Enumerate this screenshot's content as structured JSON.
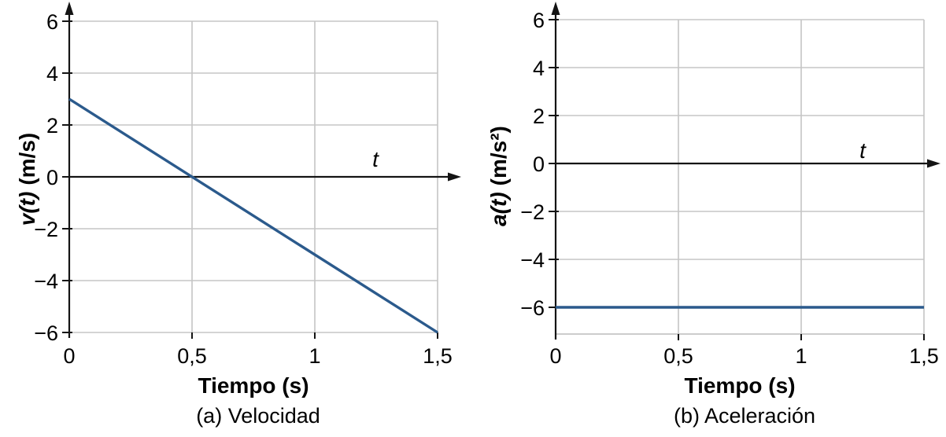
{
  "style": {
    "background": "#ffffff",
    "line_color": "#2b5a8c",
    "grid_color": "#c5c5c5",
    "axis_color": "#141414",
    "text_color": "#000000"
  },
  "chart_data": [
    {
      "id": "velocidad",
      "type": "line",
      "caption": "(a) Velocidad",
      "xlabel": "Tiempo (s)",
      "ylabel_variable": "v(t)",
      "ylabel_units": "(m/s)",
      "x_axis_symbol": "t",
      "xlim": [
        0,
        1.5
      ],
      "ylim": [
        -6,
        6
      ],
      "grid": true,
      "legend": false,
      "bottom_border": false,
      "x_ticks": [
        {
          "value": 0,
          "label": "0"
        },
        {
          "value": 0.5,
          "label": "0,5"
        },
        {
          "value": 1,
          "label": "1"
        },
        {
          "value": 1.5,
          "label": "1,5"
        }
      ],
      "y_ticks": [
        {
          "value": 6,
          "label": "6"
        },
        {
          "value": 4,
          "label": "4"
        },
        {
          "value": 2,
          "label": "2"
        },
        {
          "value": 0,
          "label": "0"
        },
        {
          "value": -2,
          "label": "−2"
        },
        {
          "value": -4,
          "label": "−4"
        },
        {
          "value": -6,
          "label": "−6"
        }
      ],
      "series": [
        {
          "name": "velocidad",
          "color": "#2b5a8c",
          "points": [
            [
              0,
              3
            ],
            [
              1.5,
              -6
            ]
          ]
        }
      ]
    },
    {
      "id": "aceleracion",
      "type": "line",
      "caption": "(b) Aceleración",
      "xlabel": "Tiempo (s)",
      "ylabel_variable": "a(t)",
      "ylabel_units": "(m/s²)",
      "x_axis_symbol": "t",
      "xlim": [
        0,
        1.5
      ],
      "ylim": [
        -7,
        6
      ],
      "grid": true,
      "legend": false,
      "bottom_border": true,
      "x_ticks": [
        {
          "value": 0,
          "label": "0"
        },
        {
          "value": 0.5,
          "label": "0,5"
        },
        {
          "value": 1,
          "label": "1"
        },
        {
          "value": 1.5,
          "label": "1,5"
        }
      ],
      "y_ticks": [
        {
          "value": 6,
          "label": "6"
        },
        {
          "value": 4,
          "label": "4"
        },
        {
          "value": 2,
          "label": "2"
        },
        {
          "value": 0,
          "label": "0"
        },
        {
          "value": -2,
          "label": "−2"
        },
        {
          "value": -4,
          "label": "−4"
        },
        {
          "value": -6,
          "label": "−6"
        }
      ],
      "series": [
        {
          "name": "aceleración",
          "color": "#2b5a8c",
          "points": [
            [
              0,
              -6
            ],
            [
              1.5,
              -6
            ]
          ]
        }
      ]
    }
  ]
}
